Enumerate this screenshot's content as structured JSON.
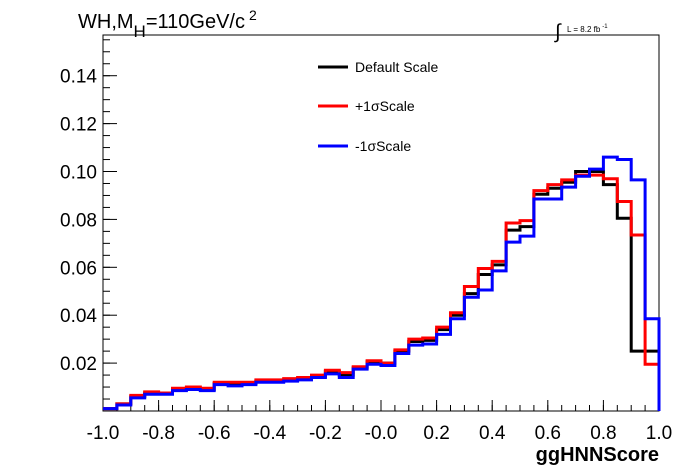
{
  "title": {
    "main": "WH,M",
    "sub": "H",
    "tail": "=110GeV/c",
    "sup": "2"
  },
  "lumi": {
    "integral": "∫",
    "text": "L = 8.2 fb",
    "sup": "-1"
  },
  "chart_data": {
    "type": "line",
    "title": "WH,MH=110GeV/c2",
    "xlabel": "ggHNNScore",
    "ylabel": "",
    "xlim": [
      -1.0,
      1.0
    ],
    "ylim": [
      0,
      0.157
    ],
    "xticks": [
      "-1.0",
      "-0.8",
      "-0.6",
      "-0.4",
      "-0.2",
      "-0.0",
      "0.2",
      "0.4",
      "0.6",
      "0.8",
      "1.0"
    ],
    "yticks": [
      "0.02",
      "0.04",
      "0.06",
      "0.08",
      "0.10",
      "0.12",
      "0.14"
    ],
    "x_edges": [
      -1.0,
      -0.95,
      -0.9,
      -0.85,
      -0.8,
      -0.75,
      -0.7,
      -0.65,
      -0.6,
      -0.55,
      -0.5,
      -0.45,
      -0.4,
      -0.35,
      -0.3,
      -0.25,
      -0.2,
      -0.15,
      -0.1,
      -0.05,
      0.0,
      0.05,
      0.1,
      0.15,
      0.2,
      0.25,
      0.3,
      0.35,
      0.4,
      0.45,
      0.5,
      0.55,
      0.6,
      0.65,
      0.7,
      0.75,
      0.8,
      0.85,
      0.9,
      0.95,
      1.0
    ],
    "series": [
      {
        "name": "Default Scale",
        "color": "#000000",
        "values": [
          0.001,
          0.003,
          0.006,
          0.0075,
          0.0075,
          0.009,
          0.0095,
          0.009,
          0.0115,
          0.0115,
          0.0115,
          0.0125,
          0.0125,
          0.013,
          0.0135,
          0.0145,
          0.0165,
          0.015,
          0.018,
          0.0205,
          0.02,
          0.025,
          0.029,
          0.0295,
          0.034,
          0.04,
          0.049,
          0.057,
          0.061,
          0.0755,
          0.077,
          0.0905,
          0.093,
          0.0955,
          0.1,
          0.1,
          0.0945,
          0.0805,
          0.025,
          0.025
        ]
      },
      {
        "name": "+1σScale",
        "color": "#ff0000",
        "values": [
          0.001,
          0.003,
          0.0065,
          0.008,
          0.0075,
          0.0095,
          0.01,
          0.0095,
          0.012,
          0.012,
          0.012,
          0.013,
          0.013,
          0.0135,
          0.014,
          0.015,
          0.017,
          0.016,
          0.0185,
          0.021,
          0.02,
          0.0255,
          0.03,
          0.0305,
          0.035,
          0.041,
          0.052,
          0.0595,
          0.0625,
          0.0785,
          0.0795,
          0.092,
          0.0945,
          0.0965,
          0.0985,
          0.0985,
          0.097,
          0.0875,
          0.0735,
          0.0195
        ]
      },
      {
        "name": "-1σScale",
        "color": "#0000ff",
        "values": [
          0.001,
          0.0025,
          0.0055,
          0.007,
          0.007,
          0.0085,
          0.009,
          0.0085,
          0.011,
          0.0105,
          0.011,
          0.012,
          0.012,
          0.0125,
          0.013,
          0.014,
          0.0155,
          0.014,
          0.0175,
          0.0195,
          0.019,
          0.024,
          0.0275,
          0.028,
          0.032,
          0.0385,
          0.0475,
          0.0505,
          0.0585,
          0.0705,
          0.073,
          0.0885,
          0.0885,
          0.0935,
          0.098,
          0.101,
          0.106,
          0.105,
          0.0965,
          0.0385
        ]
      }
    ],
    "legend": {
      "position": "top-center",
      "entries": [
        "Default Scale",
        "+1σScale",
        "-1σScale"
      ]
    },
    "grid": false
  }
}
